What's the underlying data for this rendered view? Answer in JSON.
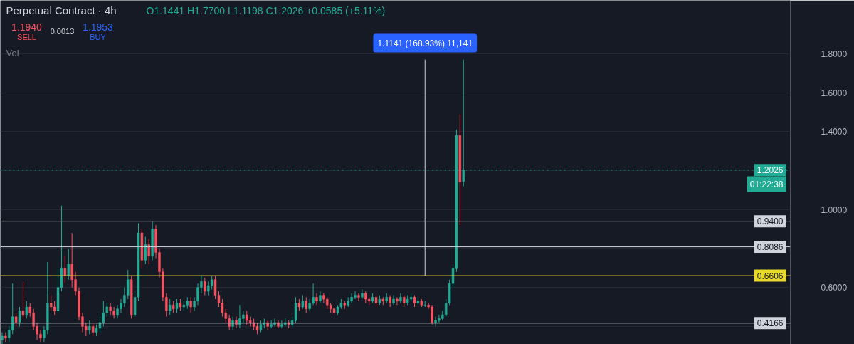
{
  "chart_data": {
    "type": "candlestick",
    "title": "Perpetual Contract · 4h",
    "categories": [
      null,
      null,
      null,
      null,
      null,
      null,
      null,
      null,
      null,
      null,
      null,
      null,
      null,
      null,
      null,
      null,
      null,
      null,
      null,
      null,
      null,
      null,
      null,
      null,
      null,
      null,
      null,
      null,
      null,
      null,
      null,
      null,
      null,
      null,
      null,
      null,
      null,
      null,
      null,
      null,
      null,
      null,
      null,
      null,
      null,
      null,
      null,
      null,
      null,
      null,
      null,
      null,
      null,
      null,
      null,
      null,
      null,
      null,
      null,
      null,
      null,
      null,
      null,
      null,
      null,
      null,
      null,
      null,
      null,
      null,
      null,
      null,
      null,
      null,
      null,
      null,
      null,
      null,
      null,
      null,
      null,
      null,
      null,
      null,
      null,
      null,
      null,
      null,
      null,
      null,
      null,
      null,
      null,
      null,
      null,
      null,
      null,
      null,
      null,
      null,
      null,
      null,
      null,
      null,
      null,
      null,
      null,
      null,
      null,
      null,
      null,
      null,
      null,
      null,
      null,
      null,
      null,
      null,
      null,
      null,
      null,
      null,
      null,
      null,
      null,
      null,
      null,
      null,
      null,
      null,
      null,
      null,
      null,
      null,
      null,
      null,
      null,
      null,
      null,
      null,
      null,
      null,
      null,
      null,
      null,
      null,
      null,
      null,
      null,
      null,
      null,
      null,
      null,
      null,
      null,
      null,
      null,
      null,
      null,
      null,
      null,
      null,
      null,
      null,
      null,
      null,
      null,
      null,
      null,
      null,
      null,
      null,
      null,
      null,
      null,
      null,
      null,
      null,
      null,
      null,
      null,
      null,
      null,
      null,
      null,
      null,
      null,
      null,
      null,
      null,
      null,
      null,
      null,
      null,
      null,
      null,
      null,
      null,
      null,
      null,
      null,
      null,
      null,
      null,
      null,
      null,
      null,
      null,
      null,
      null,
      null,
      null,
      null,
      null,
      null,
      null,
      null,
      null,
      null,
      null,
      null,
      null,
      null,
      null,
      null,
      null
    ],
    "ohlc": [
      [
        0.33,
        0.37,
        0.31,
        0.35
      ],
      [
        0.35,
        0.37,
        0.32,
        0.34
      ],
      [
        0.34,
        0.4,
        0.32,
        0.38
      ],
      [
        0.38,
        0.62,
        0.36,
        0.45
      ],
      [
        0.45,
        0.47,
        0.4,
        0.42
      ],
      [
        0.42,
        0.5,
        0.4,
        0.48
      ],
      [
        0.48,
        0.63,
        0.44,
        0.46
      ],
      [
        0.46,
        0.53,
        0.44,
        0.5
      ],
      [
        0.5,
        0.52,
        0.45,
        0.47
      ],
      [
        0.47,
        0.49,
        0.38,
        0.4
      ],
      [
        0.4,
        0.42,
        0.33,
        0.36
      ],
      [
        0.36,
        0.38,
        0.32,
        0.34
      ],
      [
        0.34,
        0.4,
        0.32,
        0.38
      ],
      [
        0.38,
        0.73,
        0.36,
        0.52
      ],
      [
        0.52,
        0.56,
        0.48,
        0.5
      ],
      [
        0.5,
        0.53,
        0.46,
        0.48
      ],
      [
        0.48,
        0.7,
        0.47,
        0.6
      ],
      [
        0.6,
        1.02,
        0.58,
        0.7
      ],
      [
        0.7,
        0.76,
        0.62,
        0.66
      ],
      [
        0.66,
        0.8,
        0.64,
        0.72
      ],
      [
        0.72,
        0.88,
        0.6,
        0.64
      ],
      [
        0.64,
        0.68,
        0.56,
        0.58
      ],
      [
        0.58,
        0.6,
        0.43,
        0.45
      ],
      [
        0.45,
        0.47,
        0.37,
        0.4
      ],
      [
        0.4,
        0.42,
        0.35,
        0.38
      ],
      [
        0.38,
        0.43,
        0.36,
        0.4
      ],
      [
        0.4,
        0.42,
        0.35,
        0.37
      ],
      [
        0.37,
        0.41,
        0.35,
        0.39
      ],
      [
        0.39,
        0.45,
        0.37,
        0.42
      ],
      [
        0.42,
        0.53,
        0.4,
        0.47
      ],
      [
        0.47,
        0.52,
        0.45,
        0.5
      ],
      [
        0.5,
        0.52,
        0.46,
        0.48
      ],
      [
        0.48,
        0.5,
        0.44,
        0.46
      ],
      [
        0.46,
        0.51,
        0.44,
        0.49
      ],
      [
        0.49,
        0.54,
        0.47,
        0.52
      ],
      [
        0.52,
        0.6,
        0.5,
        0.56
      ],
      [
        0.56,
        0.69,
        0.54,
        0.64
      ],
      [
        0.64,
        0.66,
        0.44,
        0.46
      ],
      [
        0.46,
        0.58,
        0.45,
        0.55
      ],
      [
        0.55,
        0.93,
        0.53,
        0.88
      ],
      [
        0.88,
        0.9,
        0.7,
        0.74
      ],
      [
        0.74,
        0.86,
        0.72,
        0.82
      ],
      [
        0.82,
        0.85,
        0.72,
        0.76
      ],
      [
        0.76,
        0.94,
        0.74,
        0.9
      ],
      [
        0.9,
        0.92,
        0.75,
        0.78
      ],
      [
        0.78,
        0.8,
        0.65,
        0.68
      ],
      [
        0.68,
        0.7,
        0.53,
        0.55
      ],
      [
        0.55,
        0.57,
        0.45,
        0.48
      ],
      [
        0.48,
        0.54,
        0.46,
        0.51
      ],
      [
        0.51,
        0.53,
        0.47,
        0.49
      ],
      [
        0.49,
        0.54,
        0.47,
        0.52
      ],
      [
        0.52,
        0.54,
        0.48,
        0.5
      ],
      [
        0.5,
        0.53,
        0.48,
        0.51
      ],
      [
        0.51,
        0.55,
        0.49,
        0.53
      ],
      [
        0.53,
        0.55,
        0.47,
        0.5
      ],
      [
        0.5,
        0.55,
        0.48,
        0.53
      ],
      [
        0.53,
        0.62,
        0.51,
        0.6
      ],
      [
        0.6,
        0.66,
        0.57,
        0.63
      ],
      [
        0.63,
        0.65,
        0.56,
        0.58
      ],
      [
        0.58,
        0.63,
        0.56,
        0.61
      ],
      [
        0.61,
        0.66,
        0.59,
        0.64
      ],
      [
        0.64,
        0.66,
        0.54,
        0.56
      ],
      [
        0.56,
        0.58,
        0.5,
        0.52
      ],
      [
        0.52,
        0.54,
        0.45,
        0.47
      ],
      [
        0.47,
        0.49,
        0.42,
        0.44
      ],
      [
        0.44,
        0.46,
        0.38,
        0.4
      ],
      [
        0.4,
        0.45,
        0.38,
        0.43
      ],
      [
        0.43,
        0.45,
        0.39,
        0.41
      ],
      [
        0.41,
        0.51,
        0.39,
        0.44
      ],
      [
        0.44,
        0.48,
        0.42,
        0.46
      ],
      [
        0.46,
        0.48,
        0.41,
        0.43
      ],
      [
        0.43,
        0.45,
        0.4,
        0.42
      ],
      [
        0.42,
        0.44,
        0.38,
        0.4
      ],
      [
        0.4,
        0.42,
        0.36,
        0.38
      ],
      [
        0.38,
        0.43,
        0.37,
        0.41
      ],
      [
        0.41,
        0.44,
        0.39,
        0.42
      ],
      [
        0.42,
        0.43,
        0.38,
        0.4
      ],
      [
        0.4,
        0.43,
        0.39,
        0.41
      ],
      [
        0.41,
        0.44,
        0.4,
        0.42
      ],
      [
        0.42,
        0.43,
        0.39,
        0.4
      ],
      [
        0.4,
        0.43,
        0.39,
        0.41
      ],
      [
        0.41,
        0.44,
        0.4,
        0.42
      ],
      [
        0.42,
        0.43,
        0.39,
        0.41
      ],
      [
        0.41,
        0.45,
        0.4,
        0.43
      ],
      [
        0.43,
        0.55,
        0.42,
        0.52
      ],
      [
        0.52,
        0.54,
        0.48,
        0.5
      ],
      [
        0.5,
        0.56,
        0.49,
        0.53
      ],
      [
        0.53,
        0.55,
        0.47,
        0.49
      ],
      [
        0.49,
        0.54,
        0.48,
        0.52
      ],
      [
        0.52,
        0.62,
        0.51,
        0.55
      ],
      [
        0.55,
        0.57,
        0.51,
        0.53
      ],
      [
        0.53,
        0.58,
        0.52,
        0.56
      ],
      [
        0.56,
        0.57,
        0.52,
        0.54
      ],
      [
        0.54,
        0.55,
        0.49,
        0.51
      ],
      [
        0.51,
        0.52,
        0.47,
        0.49
      ],
      [
        0.49,
        0.5,
        0.46,
        0.47
      ],
      [
        0.47,
        0.51,
        0.46,
        0.5
      ],
      [
        0.5,
        0.54,
        0.49,
        0.52
      ],
      [
        0.52,
        0.53,
        0.49,
        0.51
      ],
      [
        0.51,
        0.55,
        0.5,
        0.53
      ],
      [
        0.53,
        0.57,
        0.52,
        0.55
      ],
      [
        0.55,
        0.58,
        0.54,
        0.56
      ],
      [
        0.56,
        0.57,
        0.53,
        0.55
      ],
      [
        0.55,
        0.59,
        0.54,
        0.57
      ],
      [
        0.57,
        0.58,
        0.52,
        0.54
      ],
      [
        0.54,
        0.55,
        0.51,
        0.53
      ],
      [
        0.53,
        0.57,
        0.52,
        0.55
      ],
      [
        0.55,
        0.56,
        0.5,
        0.52
      ],
      [
        0.52,
        0.56,
        0.51,
        0.54
      ],
      [
        0.54,
        0.55,
        0.51,
        0.53
      ],
      [
        0.53,
        0.57,
        0.52,
        0.55
      ],
      [
        0.55,
        0.56,
        0.5,
        0.52
      ],
      [
        0.52,
        0.56,
        0.51,
        0.54
      ],
      [
        0.54,
        0.55,
        0.51,
        0.53
      ],
      [
        0.53,
        0.57,
        0.52,
        0.55
      ],
      [
        0.55,
        0.56,
        0.5,
        0.52
      ],
      [
        0.52,
        0.56,
        0.51,
        0.54
      ],
      [
        0.54,
        0.57,
        0.53,
        0.55
      ],
      [
        0.55,
        0.56,
        0.5,
        0.52
      ],
      [
        0.52,
        0.55,
        0.51,
        0.53
      ],
      [
        0.53,
        0.54,
        0.5,
        0.51
      ],
      [
        0.51,
        0.53,
        0.5,
        0.51
      ],
      [
        0.51,
        0.52,
        0.49,
        0.5
      ],
      [
        0.5,
        0.51,
        0.41,
        0.42
      ],
      [
        0.42,
        0.45,
        0.4,
        0.43
      ],
      [
        0.43,
        0.46,
        0.42,
        0.44
      ],
      [
        0.44,
        0.48,
        0.43,
        0.46
      ],
      [
        0.46,
        0.54,
        0.45,
        0.52
      ],
      [
        0.52,
        0.64,
        0.51,
        0.62
      ],
      [
        0.62,
        0.72,
        0.6,
        0.7
      ],
      [
        0.7,
        1.41,
        0.68,
        1.38
      ],
      [
        1.38,
        1.49,
        0.92,
        1.14
      ],
      [
        1.1441,
        1.77,
        1.1198,
        1.2026
      ],
      null,
      null,
      null,
      null,
      null,
      null,
      null,
      null,
      null,
      null,
      null,
      null,
      null,
      null,
      null,
      null,
      null,
      null,
      null,
      null,
      null,
      null,
      null,
      null,
      null,
      null,
      null,
      null,
      null,
      null,
      null,
      null,
      null,
      null,
      null,
      null,
      null,
      null,
      null,
      null,
      null,
      null,
      null,
      null,
      null,
      null,
      null,
      null,
      null,
      null,
      null,
      null,
      null,
      null,
      null,
      null,
      null,
      null,
      null,
      null,
      null,
      null,
      null,
      null,
      null,
      null,
      null,
      null,
      null,
      null,
      null,
      null,
      null,
      null,
      null,
      null,
      null,
      null,
      null,
      null,
      null,
      null,
      null,
      null,
      null,
      null,
      null,
      null,
      null,
      null,
      null,
      null,
      null
    ],
    "colors": [
      "#22ab94",
      "#f7525f",
      "#22ab94",
      "#22ab94",
      "#f7525f",
      "#22ab94",
      "#f7525f",
      "#22ab94",
      "#f7525f",
      "#f7525f",
      "#f7525f",
      "#f7525f",
      "#22ab94",
      "#22ab94",
      "#f7525f",
      "#f7525f",
      "#22ab94",
      "#22ab94",
      "#f7525f",
      "#22ab94",
      "#f7525f",
      "#f7525f",
      "#f7525f",
      "#f7525f",
      "#f7525f",
      "#22ab94",
      "#f7525f",
      "#22ab94",
      "#22ab94",
      "#22ab94",
      "#22ab94",
      "#f7525f",
      "#f7525f",
      "#22ab94",
      "#22ab94",
      "#22ab94",
      "#22ab94",
      "#f7525f",
      "#22ab94",
      "#22ab94",
      "#f7525f",
      "#22ab94",
      "#f7525f",
      "#22ab94",
      "#f7525f",
      "#f7525f",
      "#f7525f",
      "#f7525f",
      "#22ab94",
      "#f7525f",
      "#22ab94",
      "#f7525f",
      "#22ab94",
      "#22ab94",
      "#f7525f",
      "#22ab94",
      "#22ab94",
      "#22ab94",
      "#f7525f",
      "#22ab94",
      "#22ab94",
      "#f7525f",
      "#f7525f",
      "#f7525f",
      "#f7525f",
      "#f7525f",
      "#22ab94",
      "#f7525f",
      "#22ab94",
      "#22ab94",
      "#f7525f",
      "#f7525f",
      "#f7525f",
      "#f7525f",
      "#22ab94",
      "#22ab94",
      "#f7525f",
      "#22ab94",
      "#22ab94",
      "#f7525f",
      "#22ab94",
      "#22ab94",
      "#f7525f",
      "#22ab94",
      "#22ab94",
      "#f7525f",
      "#22ab94",
      "#f7525f",
      "#22ab94",
      "#22ab94",
      "#f7525f",
      "#22ab94",
      "#f7525f",
      "#f7525f",
      "#f7525f",
      "#f7525f",
      "#22ab94",
      "#22ab94",
      "#f7525f",
      "#22ab94",
      "#22ab94",
      "#22ab94",
      "#f7525f",
      "#22ab94",
      "#f7525f",
      "#f7525f",
      "#22ab94",
      "#f7525f",
      "#22ab94",
      "#f7525f",
      "#22ab94",
      "#f7525f",
      "#22ab94",
      "#f7525f",
      "#22ab94",
      "#f7525f",
      "#22ab94",
      "#22ab94",
      "#f7525f",
      "#22ab94",
      "#f7525f",
      "#22ab94",
      "#f7525f",
      "#f7525f",
      "#22ab94",
      "#22ab94",
      "#22ab94",
      "#22ab94",
      "#22ab94",
      "#22ab94",
      "#22ab94",
      "#f7525f",
      "#22ab94",
      null,
      null,
      null,
      null,
      null,
      null,
      null,
      null,
      null,
      null,
      null,
      null,
      null,
      null,
      null,
      null,
      null,
      null,
      null,
      null,
      null,
      null,
      null,
      null,
      null,
      null,
      null,
      null,
      null,
      null,
      null,
      null,
      null,
      null,
      null,
      null,
      null,
      null,
      null,
      null,
      null,
      null,
      null,
      null,
      null,
      null,
      null,
      null,
      null,
      null,
      null,
      null,
      null,
      null,
      null,
      null,
      null,
      null,
      null,
      null,
      null,
      null,
      null,
      null,
      null,
      null,
      null,
      null,
      null,
      null,
      null,
      null,
      null,
      null,
      null,
      null,
      null,
      null,
      null,
      null,
      null,
      null,
      null,
      null,
      null,
      null,
      null,
      null,
      null,
      null,
      null,
      null,
      null
    ],
    "ylim": [
      0.308,
      2.074
    ],
    "yticks": [
      {
        "value": 0.4,
        "label": null
      },
      {
        "value": 0.6,
        "label": "0.6000"
      },
      {
        "value": 0.8,
        "label": null
      },
      {
        "value": 1.0,
        "label": "1.0000"
      },
      {
        "value": 1.2,
        "label": null
      },
      {
        "value": 1.4,
        "label": "1.4000"
      },
      {
        "value": 1.6,
        "label": "1.6000"
      },
      {
        "value": 1.8,
        "label": "1.8000"
      }
    ],
    "grid": "y",
    "tick_labels": "y",
    "ref_lines": [
      {
        "axis": "y",
        "value": 0.94,
        "label": "0.9400",
        "color": "#d1d4dc"
      },
      {
        "axis": "y",
        "value": 0.8086,
        "label": "0.8086",
        "color": "#d1d4dc"
      },
      {
        "axis": "y",
        "value": 0.6606,
        "label": "0.6606",
        "color": "#e8d92c"
      },
      {
        "axis": "y",
        "value": 0.4166,
        "label": "0.4166",
        "color": "#d1d4dc"
      },
      {
        "axis": "y",
        "value": 1.2026,
        "label": "1.2026",
        "color": "#22ab94",
        "line_style": "dotted"
      }
    ],
    "annotations": [
      "1.1940",
      "SELL",
      "0.0013",
      "1.1953",
      "BUY",
      "Vol",
      "O1.1441 H1.7700 L1.1198 C1.2026 +0.0585 (+5.11%)",
      "1.1141 (168.93%) 11,141",
      "01:22:38"
    ]
  }
}
